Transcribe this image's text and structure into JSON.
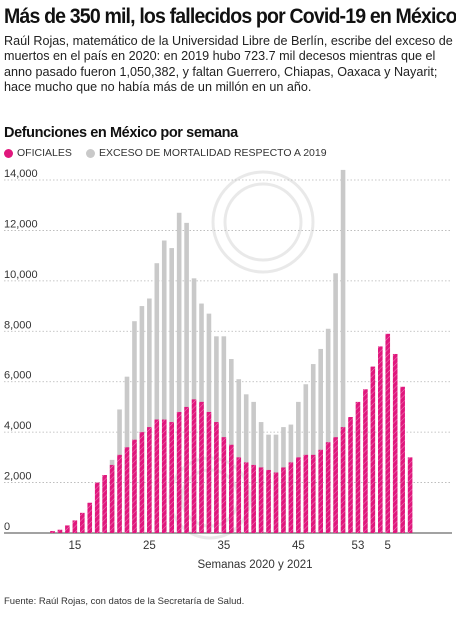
{
  "headline": "Más de 350 mil, los fallecidos por Covid-19 en México",
  "lede": "Raúl Rojas, matemático de la Universidad Libre de Berlín, escribe del exceso de muertos en el país en 2020: en 2019 hubo 723.7 mil decesos mientras que el anno pasado fueron 1,050,382, y faltan Guerrero, Chiapas, Oaxaca y Nayarit; hace mucho que no había más de un millón en un año.",
  "source": "Fuente: Raúl Rojas, con datos de la Secretaría de Salud.",
  "colors": {
    "official": "#e0187d",
    "excess": "#c9c9c9",
    "axis_text": "#333333"
  },
  "chart_data": {
    "type": "bar",
    "title": "Defunciones en México por semana",
    "xlabel": "Semanas 2020 y 2021",
    "ylabel": "",
    "ylim": [
      0,
      14500
    ],
    "yticks": [
      0,
      2000,
      4000,
      6000,
      8000,
      10000,
      12000,
      14000
    ],
    "ytick_labels": [
      "0",
      "2,000",
      "4,000",
      "6,000",
      "8,000",
      "10,000",
      "12,000",
      "14,000"
    ],
    "x_tick_labels": [
      {
        "index": 3,
        "label": "15"
      },
      {
        "index": 13,
        "label": "25"
      },
      {
        "index": 23,
        "label": "35"
      },
      {
        "index": 33,
        "label": "45"
      },
      {
        "index": 41,
        "label": "53"
      },
      {
        "index": 45,
        "label": "5"
      }
    ],
    "series": [
      {
        "name": "OFICIALES",
        "values": [
          80,
          130,
          300,
          500,
          800,
          1200,
          2000,
          2300,
          2700,
          3100,
          3400,
          3700,
          4000,
          4200,
          4500,
          4500,
          4400,
          4800,
          5000,
          5300,
          5200,
          4800,
          4400,
          3800,
          3500,
          3000,
          2800,
          2700,
          2600,
          2500,
          2400,
          2600,
          2800,
          3000,
          3100,
          3100,
          3300,
          3600,
          3800,
          4200,
          4600,
          5200,
          5700,
          6600,
          7400,
          7900,
          7100,
          5800,
          3000
        ]
      },
      {
        "name": "EXCESO DE MORTALIDAD RESPECTO A 2019",
        "values": [
          0,
          0,
          0,
          0,
          0,
          0,
          700,
          1900,
          2900,
          4900,
          6200,
          8400,
          9000,
          9300,
          10700,
          11600,
          11300,
          12700,
          12300,
          10100,
          9100,
          8700,
          7800,
          7800,
          6900,
          6100,
          5500,
          5200,
          4400,
          3900,
          3900,
          4200,
          4300,
          5200,
          5900,
          6700,
          7300,
          8100,
          10300,
          14400,
          0,
          0,
          0,
          0,
          0,
          0,
          0,
          0,
          0
        ]
      }
    ],
    "grid": true,
    "legend_position": "top-left"
  }
}
